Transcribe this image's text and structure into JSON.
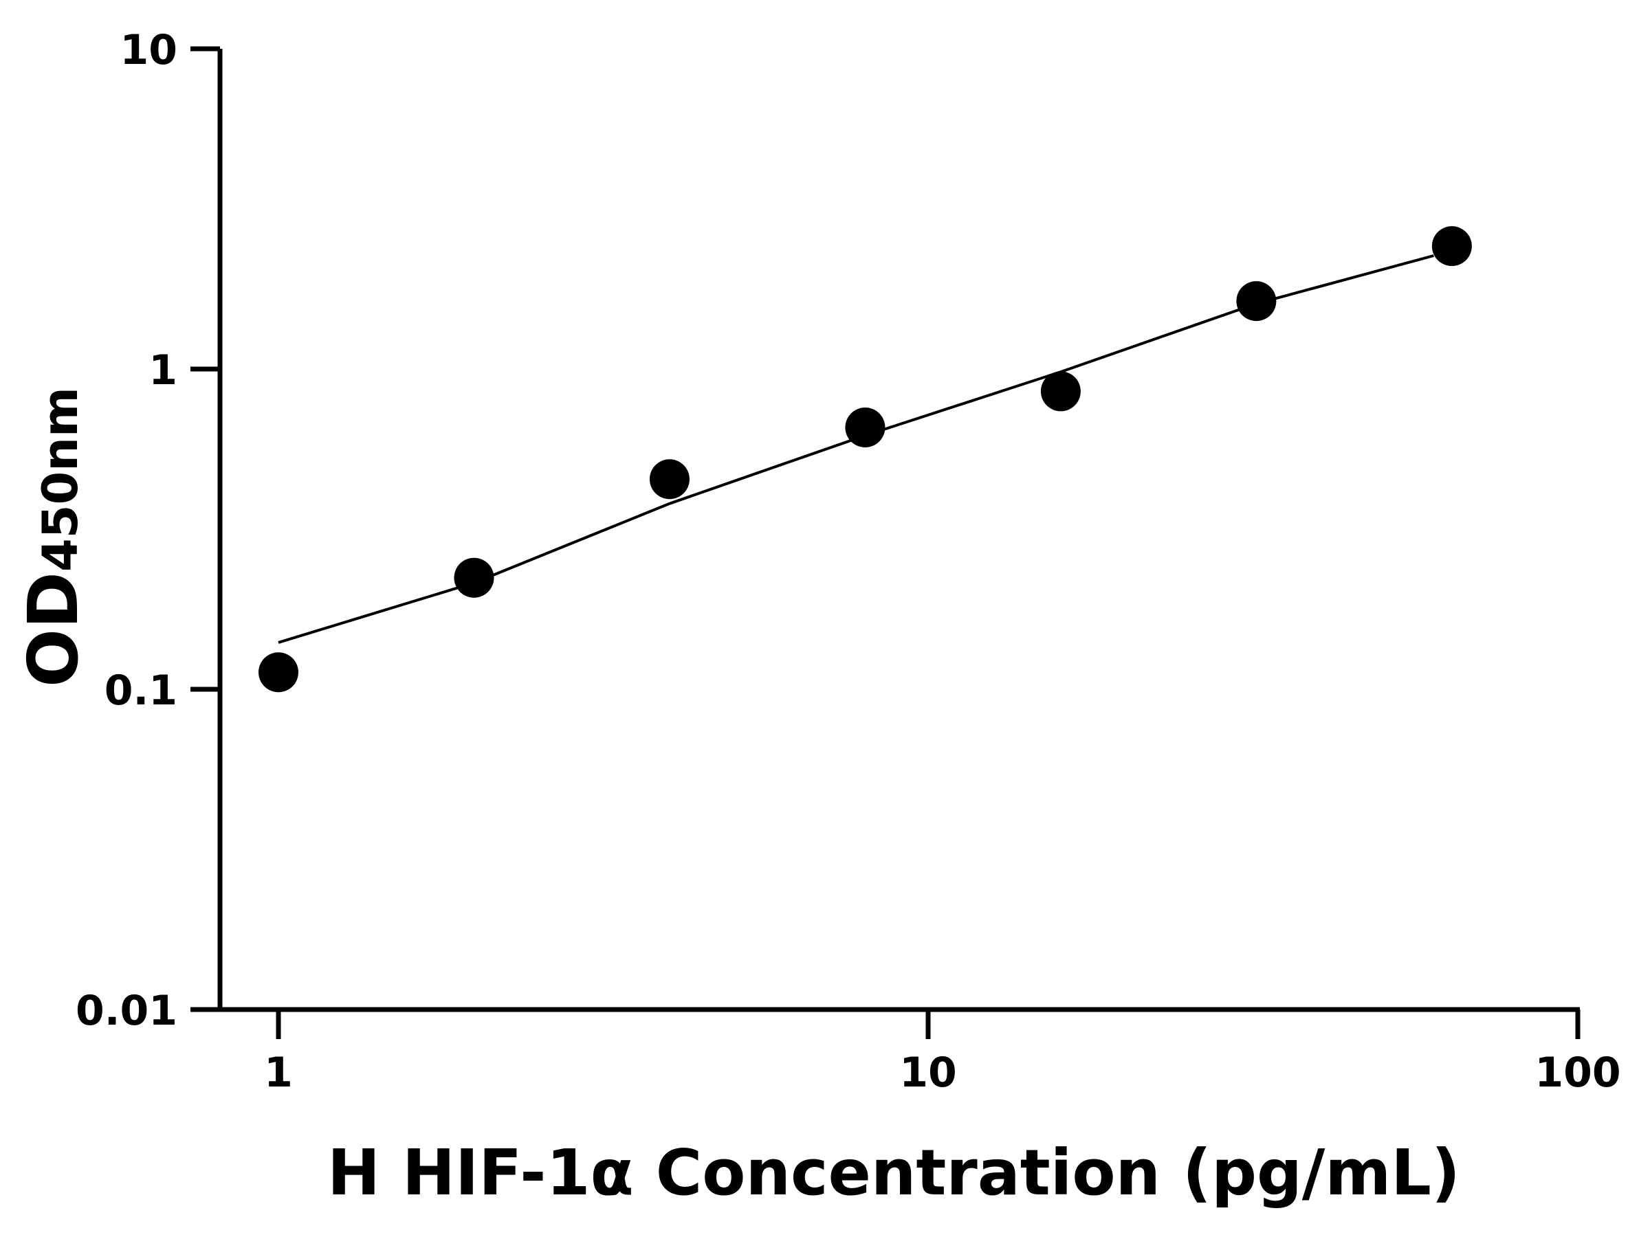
{
  "chart_data": {
    "type": "scatter",
    "title": "",
    "xlabel": "H HIF-1α Concentration (pg/mL)",
    "ylabel_main": "OD",
    "ylabel_sub": "450nm",
    "x_scale": "log",
    "y_scale": "log",
    "xlim": [
      0.8,
      100
    ],
    "ylim": [
      0.01,
      10
    ],
    "x_ticks": [
      {
        "value": 1,
        "label": "1"
      },
      {
        "value": 10,
        "label": "10"
      },
      {
        "value": 100,
        "label": "100"
      }
    ],
    "y_ticks": [
      {
        "value": 0.01,
        "label": "0.01"
      },
      {
        "value": 0.1,
        "label": "0.1"
      },
      {
        "value": 1,
        "label": "1"
      },
      {
        "value": 10,
        "label": "10"
      }
    ],
    "grid": false,
    "points": {
      "x": [
        1,
        2,
        4,
        8,
        16,
        32,
        64
      ],
      "y": [
        0.113,
        0.223,
        0.453,
        0.657,
        0.852,
        1.63,
        2.42
      ]
    },
    "fit_line": {
      "x": [
        1,
        2,
        4,
        8,
        16,
        32,
        60
      ],
      "y": [
        0.14,
        0.215,
        0.38,
        0.62,
        0.98,
        1.6,
        2.26
      ]
    },
    "colors": {
      "points": "#000000",
      "line": "#000000"
    }
  }
}
